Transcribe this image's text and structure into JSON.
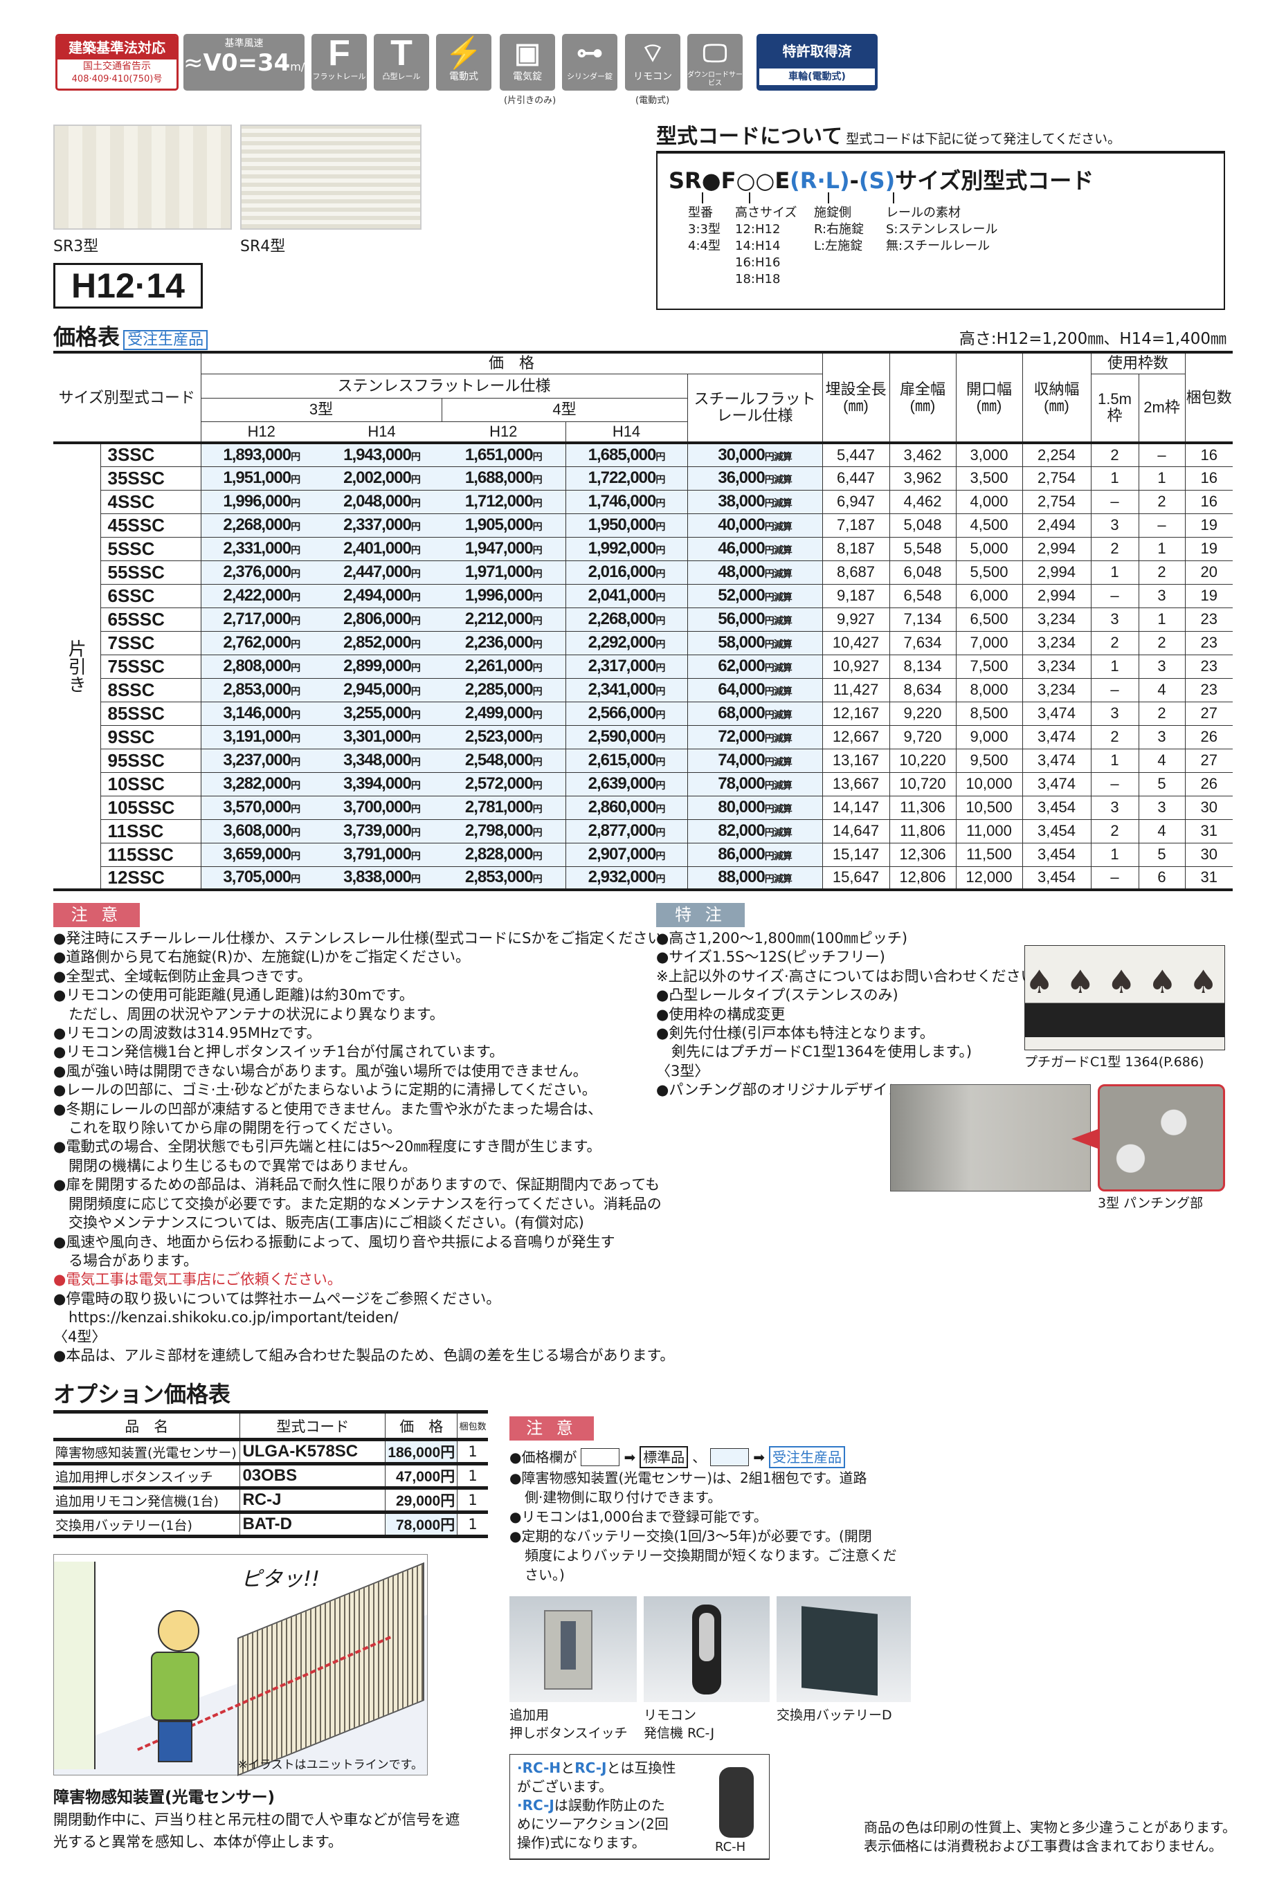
{
  "badges": {
    "law": {
      "title": "建築基準法対応",
      "sub1": "国土交通省告示",
      "sub2": "408·409·410(750)号"
    },
    "wind": {
      "label": "基準風速",
      "value": "V0=34",
      "unit": "m/s"
    },
    "flat": {
      "glyph": "F",
      "label": "フラットレール"
    },
    "convex": {
      "glyph": "T",
      "label": "凸型レール"
    },
    "electric": {
      "label": "電動式"
    },
    "elock": {
      "label": "電気錠",
      "note": "(片引きのみ)"
    },
    "cylinder": {
      "label": "シリンダー錠"
    },
    "remote": {
      "label": "リモコン",
      "note": "(電動式)"
    },
    "download": {
      "label": "ダウンロードサービス"
    },
    "patent": {
      "title": "特許取得済",
      "sub": "車輪(電動式)"
    }
  },
  "photos": {
    "sr3": "SR3型",
    "sr4": "SR4型"
  },
  "height_label": "H12·14",
  "code_info": {
    "title": "型式コードについて",
    "subtitle": "型式コードは下記に従って発注してください。",
    "code_black1": "SR●F○○E",
    "code_blue1": "(R·L)",
    "code_dash": "-",
    "code_blue2": "(S)",
    "code_rest": "サイズ別型式コード",
    "cols": [
      {
        "head": "型番",
        "lines": [
          "3:3型",
          "4:4型"
        ]
      },
      {
        "head": "高さサイズ",
        "lines": [
          "12:H12",
          "14:H14",
          "16:H16",
          "18:H18"
        ]
      },
      {
        "head": "施錠側",
        "lines": [
          "R:右施錠",
          "L:左施錠"
        ]
      },
      {
        "head": "レールの素材",
        "lines": [
          "S:ステンレスレール",
          "無:スチールレール"
        ]
      }
    ]
  },
  "price_table": {
    "title": "価格表",
    "tag": "受注生産品",
    "heights": "高さ:H12=1,200㎜、H14=1,400㎜",
    "headers": {
      "code": "サイズ別型式コード",
      "price": "価　格",
      "stainless": "ステンレスフラットレール仕様",
      "t3": "3型",
      "t4": "4型",
      "h12": "H12",
      "h14": "H14",
      "steel": "スチールフラットレール仕様",
      "burial": "埋設全長(㎜)",
      "door": "扉全幅(㎜)",
      "opening": "開口幅(㎜)",
      "storage": "収納幅(㎜)",
      "frames": "使用枠数",
      "f15": "1.5m枠",
      "f2": "2m枠",
      "packs": "梱包数"
    },
    "row_group": "片引き",
    "yen": "円",
    "reduce": "円減算",
    "rows": [
      [
        "3SSC",
        "1,893,000",
        "1,943,000",
        "1,651,000",
        "1,685,000",
        "30,000",
        "5,447",
        "3,462",
        "3,000",
        "2,254",
        "2",
        "–",
        "16"
      ],
      [
        "35SSC",
        "1,951,000",
        "2,002,000",
        "1,688,000",
        "1,722,000",
        "36,000",
        "6,447",
        "3,962",
        "3,500",
        "2,754",
        "1",
        "1",
        "16"
      ],
      [
        "4SSC",
        "1,996,000",
        "2,048,000",
        "1,712,000",
        "1,746,000",
        "38,000",
        "6,947",
        "4,462",
        "4,000",
        "2,754",
        "–",
        "2",
        "16"
      ],
      [
        "45SSC",
        "2,268,000",
        "2,337,000",
        "1,905,000",
        "1,950,000",
        "40,000",
        "7,187",
        "5,048",
        "4,500",
        "2,494",
        "3",
        "–",
        "19"
      ],
      [
        "5SSC",
        "2,331,000",
        "2,401,000",
        "1,947,000",
        "1,992,000",
        "46,000",
        "8,187",
        "5,548",
        "5,000",
        "2,994",
        "2",
        "1",
        "19"
      ],
      [
        "55SSC",
        "2,376,000",
        "2,447,000",
        "1,971,000",
        "2,016,000",
        "48,000",
        "8,687",
        "6,048",
        "5,500",
        "2,994",
        "1",
        "2",
        "20"
      ],
      [
        "6SSC",
        "2,422,000",
        "2,494,000",
        "1,996,000",
        "2,041,000",
        "52,000",
        "9,187",
        "6,548",
        "6,000",
        "2,994",
        "–",
        "3",
        "19"
      ],
      [
        "65SSC",
        "2,717,000",
        "2,806,000",
        "2,212,000",
        "2,268,000",
        "56,000",
        "9,927",
        "7,134",
        "6,500",
        "3,234",
        "3",
        "1",
        "23"
      ],
      [
        "7SSC",
        "2,762,000",
        "2,852,000",
        "2,236,000",
        "2,292,000",
        "58,000",
        "10,427",
        "7,634",
        "7,000",
        "3,234",
        "2",
        "2",
        "23"
      ],
      [
        "75SSC",
        "2,808,000",
        "2,899,000",
        "2,261,000",
        "2,317,000",
        "62,000",
        "10,927",
        "8,134",
        "7,500",
        "3,234",
        "1",
        "3",
        "23"
      ],
      [
        "8SSC",
        "2,853,000",
        "2,945,000",
        "2,285,000",
        "2,341,000",
        "64,000",
        "11,427",
        "8,634",
        "8,000",
        "3,234",
        "–",
        "4",
        "23"
      ],
      [
        "85SSC",
        "3,146,000",
        "3,255,000",
        "2,499,000",
        "2,566,000",
        "68,000",
        "12,167",
        "9,220",
        "8,500",
        "3,474",
        "3",
        "2",
        "27"
      ],
      [
        "9SSC",
        "3,191,000",
        "3,301,000",
        "2,523,000",
        "2,590,000",
        "72,000",
        "12,667",
        "9,720",
        "9,000",
        "3,474",
        "2",
        "3",
        "26"
      ],
      [
        "95SSC",
        "3,237,000",
        "3,348,000",
        "2,548,000",
        "2,615,000",
        "74,000",
        "13,167",
        "10,220",
        "9,500",
        "3,474",
        "1",
        "4",
        "27"
      ],
      [
        "10SSC",
        "3,282,000",
        "3,394,000",
        "2,572,000",
        "2,639,000",
        "78,000",
        "13,667",
        "10,720",
        "10,000",
        "3,474",
        "–",
        "5",
        "26"
      ],
      [
        "105SSC",
        "3,570,000",
        "3,700,000",
        "2,781,000",
        "2,860,000",
        "80,000",
        "14,147",
        "11,306",
        "10,500",
        "3,454",
        "3",
        "3",
        "30"
      ],
      [
        "11SSC",
        "3,608,000",
        "3,739,000",
        "2,798,000",
        "2,877,000",
        "82,000",
        "14,647",
        "11,806",
        "11,000",
        "3,454",
        "2",
        "4",
        "31"
      ],
      [
        "115SSC",
        "3,659,000",
        "3,791,000",
        "2,828,000",
        "2,907,000",
        "86,000",
        "15,147",
        "12,306",
        "11,500",
        "3,454",
        "1",
        "5",
        "30"
      ],
      [
        "12SSC",
        "3,705,000",
        "3,838,000",
        "2,853,000",
        "2,932,000",
        "88,000",
        "15,647",
        "12,806",
        "12,000",
        "3,454",
        "–",
        "6",
        "31"
      ]
    ]
  },
  "caution": {
    "title": "注 意",
    "items": [
      "●発注時にスチールレール仕様か、ステンレスレール仕様(型式コードにSかをご指定ください。",
      "●道路側から見て右施錠(R)か、左施錠(L)かをご指定ください。",
      "●全型式、全域転倒防止金具つきです。",
      "●リモコンの使用可能距離(見通し距離)は約30mです。",
      "ただし、周囲の状況やアンテナの状況により異なります。",
      "●リモコンの周波数は314.95MHzです。",
      "●リモコン発信機1台と押しボタンスイッチ1台が付属されています。",
      "●風が強い時は開閉できない場合があります。風が強い場所では使用できません。",
      "●レールの凹部に、ゴミ·土·砂などがたまらないように定期的に清掃してください。",
      "●冬期にレールの凹部が凍結すると使用できません。また雪や氷がたまった場合は、",
      "これを取り除いてから扉の開閉を行ってください。",
      "●電動式の場合、全閉状態でも引戸先端と柱には5～20㎜程度にすき間が生じます。",
      "開閉の機構により生じるもので異常ではありません。",
      "●扉を開閉するための部品は、消耗品で耐久性に限りがありますので、保証期間内であっても",
      "開閉頻度に応じて交換が必要です。また定期的なメンテナンスを行ってください。消耗品の",
      "交換やメンテナンスについては、販売店(工事店)にご相談ください。(有償対応)",
      "●風速や風向き、地面から伝わる振動によって、風切り音や共振による音鳴りが発生す",
      "る場合があります。",
      "●電気工事は電気工事店にご依頼ください。",
      "●停電時の取り扱いについては弊社ホームページをご参照ください。",
      "https://kenzai.shikoku.co.jp/important/teiden/",
      "〈4型〉",
      "●本品は、アルミ部材を連続して組み合わせた製品のため、色調の差を生じる場合があります。"
    ],
    "warn_color": "#d0343c"
  },
  "special": {
    "title": "特 注",
    "items": [
      "●高さ1,200～1,800㎜(100㎜ピッチ)",
      "●サイズ1.5S～12S(ピッチフリー)",
      "※上記以外のサイズ·高さについてはお問い合わせください。",
      "●凸型レールタイプ(ステンレスのみ)",
      "●使用枠の構成変更",
      "●剣先付仕様(引戸本体も特注となります。",
      "剣先にはプチガードC1型1364を使用します。)",
      "〈3型〉",
      "●パンチング部のオリジナルデザイン"
    ],
    "guard_caption": "プチガードC1型 1364(P.686)",
    "punch_caption": "3型 パンチング部"
  },
  "options": {
    "title": "オプション価格表",
    "headers": [
      "品　名",
      "型式コード",
      "価　格",
      "梱包数"
    ],
    "rows": [
      [
        "障害物感知装置(光電センサー)",
        "ULGA-K578SC",
        "186,000円",
        "1"
      ],
      [
        "追加用押しボタンスイッチ",
        "03OBS",
        "47,000円",
        "1"
      ],
      [
        "追加用リモコン発信機(1台)",
        "RC-J",
        "29,000円",
        "1"
      ],
      [
        "交換用バッテリー(1台)",
        "BAT-D",
        "78,000円",
        "1"
      ]
    ]
  },
  "opt_caution": {
    "title": "注 意",
    "legend_prefix": "●価格欄が",
    "legend_std": "標準品",
    "legend_sep": "、",
    "legend_order": "受注生産品",
    "items": [
      "●障害物感知装置(光電センサー)は、2組1梱包です。道路",
      "側·建物側に取り付けできます。",
      "●リモコンは1,000台まで登録可能です。",
      "●定期的なバッテリー交換(1回/3～5年)が必要です。(開閉",
      "頻度によりバッテリー交換期間が短くなります。ご注意くだ",
      "さい。)"
    ]
  },
  "illustration": {
    "sound": "ピタッ!!",
    "note": "※イラストはユニットラインです。"
  },
  "sensor": {
    "title": "障害物感知装置(光電センサー)",
    "lines": [
      "開閉動作中に、戸当り柱と吊元柱の間で人や車などが信号を遮",
      "光すると異常を感知し、本体が停止します。"
    ]
  },
  "products": [
    {
      "l1": "追加用",
      "l2": "押しボタンスイッチ"
    },
    {
      "l1": "リモコン",
      "l2": "発信機 RC-J"
    },
    {
      "l1": "交換用バッテリーD",
      "l2": ""
    }
  ],
  "rch": {
    "b1": "·RC-H",
    "t1": "と",
    "b2": "RC-J",
    "t2": "とは互換性",
    "l2": "がございます。",
    "b3": "·RC-J",
    "t3": "は誤動作防止のた",
    "l4": "めにツーアクション(2回",
    "l5": "操作)式になります。",
    "label": "RC-H"
  },
  "footer": [
    "商品の色は印刷の性質上、実物と多少違うことがあります。",
    "表示価格には消費税および工事費は含まれておりません。"
  ],
  "colors": {
    "accent_blue": "#2f78c8",
    "law_red": "#c0282d",
    "patent_navy": "#1d3f7a",
    "price_bg": "#eaf4fc",
    "caution_pink": "#d9606e",
    "special_gray": "#8fa3b3"
  }
}
